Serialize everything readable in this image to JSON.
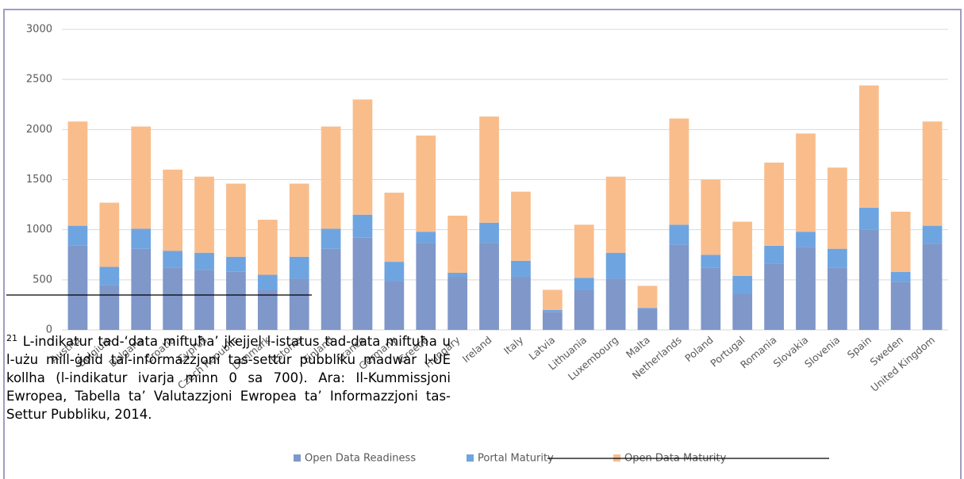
{
  "chart_data": {
    "type": "stacked-bar",
    "categories": [
      "Austria",
      "Belgium",
      "Bulgaria",
      "Croatia",
      "Cyprus",
      "Czech Republic",
      "Denmark",
      "Estonia",
      "Finland",
      "France",
      "Germany",
      "Greece",
      "Hungary",
      "Ireland",
      "Italy",
      "Latvia",
      "Lithuania",
      "Luxembourg",
      "Malta",
      "Netherlands",
      "Poland",
      "Portugal",
      "Romania",
      "Slovakia",
      "Slovenia",
      "Spain",
      "Sweden",
      "United Kingdom"
    ],
    "series": [
      {
        "name": "Open Data Readiness",
        "color": "#7f97c9",
        "values": [
          840,
          450,
          810,
          620,
          600,
          580,
          400,
          510,
          810,
          920,
          490,
          870,
          530,
          870,
          530,
          180,
          400,
          510,
          210,
          850,
          620,
          360,
          660,
          830,
          620,
          1000,
          480,
          860
        ]
      },
      {
        "name": "Portal Maturity",
        "color": "#6ea5e0",
        "values": [
          200,
          180,
          200,
          170,
          170,
          150,
          150,
          220,
          200,
          230,
          190,
          110,
          40,
          200,
          160,
          20,
          120,
          260,
          10,
          200,
          130,
          180,
          180,
          150,
          190,
          220,
          100,
          180
        ]
      },
      {
        "name": "Open Data Maturity",
        "color": "#f9bd8c",
        "values": [
          1040,
          640,
          1020,
          810,
          760,
          730,
          550,
          730,
          1020,
          1150,
          690,
          960,
          570,
          1060,
          690,
          200,
          530,
          760,
          220,
          1060,
          750,
          540,
          830,
          980,
          810,
          1220,
          600,
          1040
        ]
      }
    ],
    "ylim": [
      0,
      3000
    ],
    "yticks": [
      0,
      500,
      1000,
      1500,
      2000,
      2500,
      3000
    ],
    "grid": true,
    "legend": "bottom"
  },
  "footnote": {
    "number": "21",
    "text": "L-indikatur tad-‘data miftuħa’ jkejjel l-istatus tad-data miftuħa u l-użu mill-ġdid tal-informazzjoni tas-settur pubbliku madwar l-UE kollha (l-indikatur ivarja minn 0 sa 700). Ara: Il-Kummissjoni Ewropea, Tabella ta’ Valutazzjoni Ewropea ta’ Informazzjoni tas-Settur Pubbliku, 2014."
  }
}
